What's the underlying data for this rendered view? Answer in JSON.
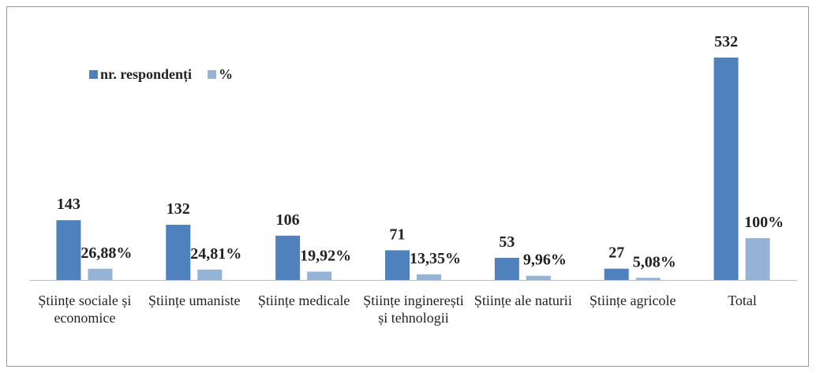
{
  "chart_data": {
    "type": "bar",
    "categories": [
      "Științe sociale și economice",
      "Științe umaniste",
      "Științe medicale",
      "Științe inginerești și tehnologii",
      "Științe ale naturii",
      "Științe agricole",
      "Total"
    ],
    "series": [
      {
        "name": "nr. respondenți",
        "color": "#4f81bd",
        "values": [
          143,
          132,
          106,
          71,
          53,
          27,
          532
        ]
      },
      {
        "name": "%",
        "color": "#95b3d7",
        "values": [
          26.88,
          24.81,
          19.92,
          13.35,
          9.96,
          5.08,
          100
        ],
        "value_labels": [
          "26,88%",
          "24,81%",
          "19,92%",
          "13,35%",
          "9,96%",
          "5,08%",
          "100%"
        ]
      }
    ],
    "legend": "top-left"
  }
}
